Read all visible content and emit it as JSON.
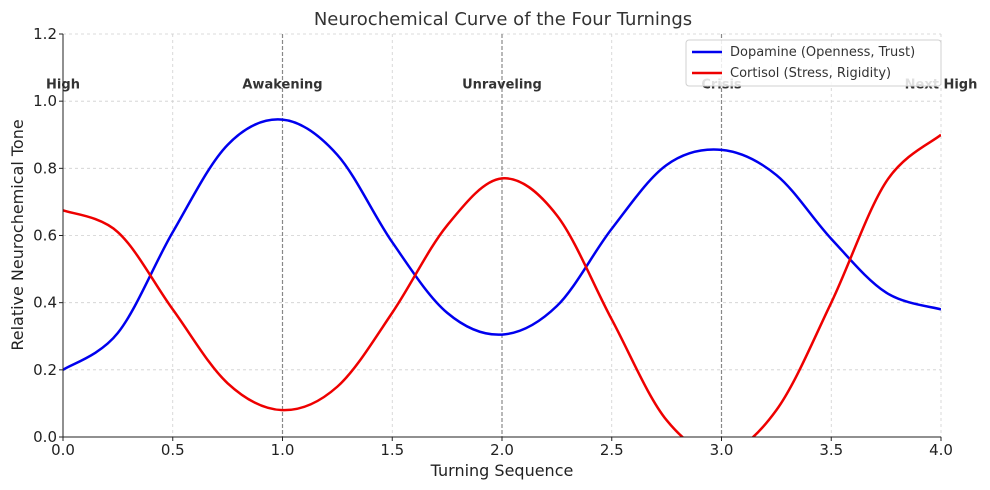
{
  "chart_data": {
    "type": "line",
    "title": "Neurochemical Curve of the Four Turnings",
    "xlabel": "Turning Sequence",
    "ylabel": "Relative Neurochemical Tone",
    "xlim": [
      0,
      4
    ],
    "ylim": [
      0,
      1.2
    ],
    "xticks": [
      0.0,
      0.5,
      1.0,
      1.5,
      2.0,
      2.5,
      3.0,
      3.5,
      4.0
    ],
    "xtick_labels": [
      "0.0",
      "0.5",
      "1.0",
      "1.5",
      "2.0",
      "2.5",
      "3.0",
      "3.5",
      "4.0"
    ],
    "yticks": [
      0.0,
      0.2,
      0.4,
      0.6,
      0.8,
      1.0,
      1.2
    ],
    "ytick_labels": [
      "0.0",
      "0.2",
      "0.4",
      "0.6",
      "0.8",
      "1.0",
      "1.2"
    ],
    "grid": true,
    "legend_position": "top-right",
    "vlines": [
      1.0,
      2.0,
      3.0
    ],
    "annotations": [
      {
        "text": "High",
        "x": 0.0,
        "y": 1.05
      },
      {
        "text": "Awakening",
        "x": 1.0,
        "y": 1.05
      },
      {
        "text": "Unraveling",
        "x": 2.0,
        "y": 1.05
      },
      {
        "text": "Crisis",
        "x": 3.0,
        "y": 1.05
      },
      {
        "text": "Next High",
        "x": 4.0,
        "y": 1.05
      }
    ],
    "x": [
      0.0,
      0.25,
      0.5,
      0.75,
      1.0,
      1.25,
      1.5,
      1.75,
      2.0,
      2.25,
      2.5,
      2.75,
      3.0,
      3.25,
      3.5,
      3.75,
      4.0
    ],
    "series": [
      {
        "name": "Dopamine (Openness, Trust)",
        "color": "#0000ee",
        "values": [
          0.2,
          0.31,
          0.61,
          0.87,
          0.945,
          0.84,
          0.58,
          0.37,
          0.305,
          0.39,
          0.62,
          0.81,
          0.855,
          0.78,
          0.59,
          0.43,
          0.38
        ]
      },
      {
        "name": "Cortisol (Stress, Rigidity)",
        "color": "#ee0000",
        "values": [
          0.675,
          0.61,
          0.38,
          0.16,
          0.08,
          0.15,
          0.37,
          0.63,
          0.77,
          0.66,
          0.35,
          0.05,
          -0.05,
          0.08,
          0.4,
          0.76,
          0.9
        ]
      }
    ]
  }
}
